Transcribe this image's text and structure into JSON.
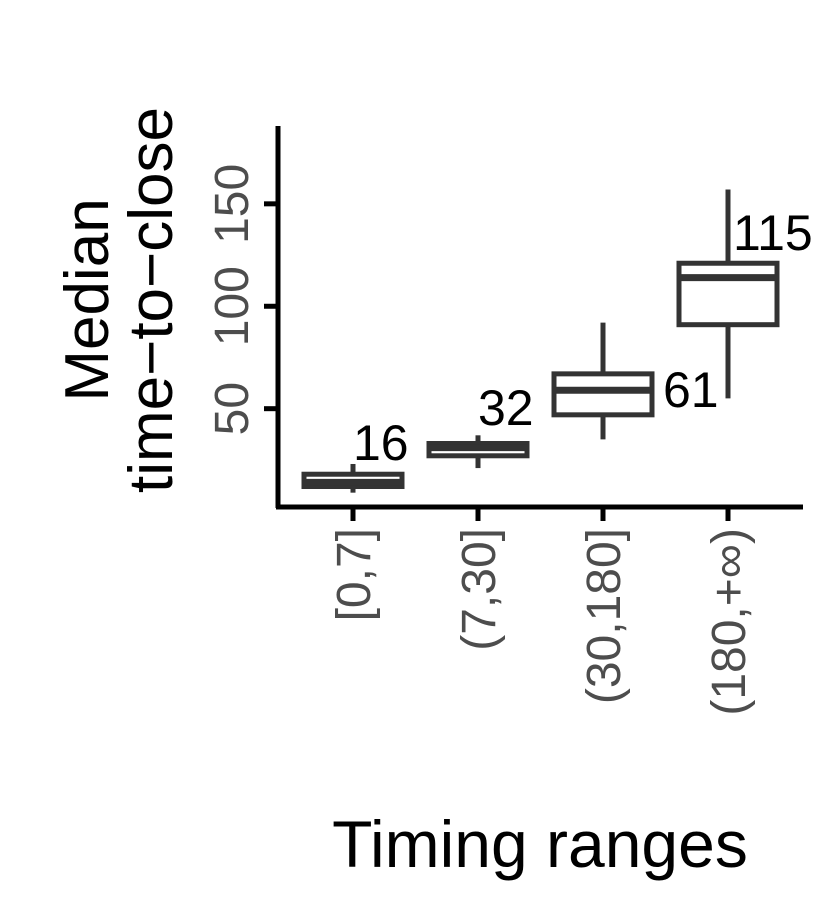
{
  "chart_data": {
    "type": "boxplot",
    "xlabel": "Timing ranges",
    "ylabel_lines": [
      "Median",
      "time−to−close"
    ],
    "categories": [
      "[0,7]",
      "(7,30]",
      "(30,180]",
      "(180,+∞)"
    ],
    "boxes": [
      {
        "category": "[0,7]",
        "whisker_low": 9,
        "q1": 12,
        "median": 14,
        "q3": 18,
        "whisker_high": 23,
        "label": "16"
      },
      {
        "category": "(7,30]",
        "whisker_low": 21,
        "q1": 27,
        "median": 31,
        "q3": 33,
        "whisker_high": 37,
        "label": "32"
      },
      {
        "category": "(30,180]",
        "whisker_low": 35,
        "q1": 47,
        "median": 59,
        "q3": 67,
        "whisker_high": 92,
        "label": "61"
      },
      {
        "category": "(180,+∞)",
        "whisker_low": 55,
        "q1": 91,
        "median": 114,
        "q3": 121,
        "whisker_high": 157,
        "label": "115"
      }
    ],
    "y_ticks": [
      50,
      100,
      150
    ],
    "ylim": [
      2,
      188
    ],
    "colors": {
      "box_stroke": "#333333",
      "box_fill": "#ffffff",
      "axis": "#000000",
      "tick_label": "#4d4d4d"
    }
  }
}
